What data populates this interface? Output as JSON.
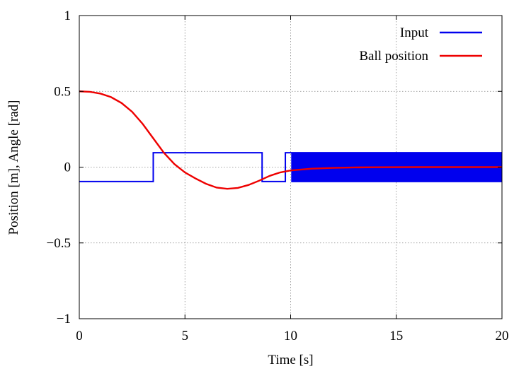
{
  "chart_data": {
    "type": "line",
    "title": "",
    "xlabel": "Time [s]",
    "ylabel": "Position [m], Angle [rad]",
    "xlim": [
      0,
      20
    ],
    "ylim": [
      -1,
      1
    ],
    "grid": true,
    "legend_position": "top-right",
    "x_ticks": [
      0,
      5,
      10,
      15,
      20
    ],
    "x_tick_labels": [
      "0",
      "5",
      "10",
      "15",
      "20"
    ],
    "y_ticks": [
      -1,
      -0.5,
      0,
      0.5,
      1
    ],
    "y_tick_labels": [
      "−1",
      "−0.5",
      "0",
      "0.5",
      "1"
    ],
    "series": [
      {
        "name": "Input",
        "color": "#0000ee",
        "points": [
          [
            0,
            -0.095
          ],
          [
            3.5,
            -0.095
          ],
          [
            3.5,
            0.095
          ],
          [
            8.65,
            0.095
          ],
          [
            8.65,
            -0.095
          ],
          [
            9.75,
            -0.095
          ],
          [
            9.75,
            0.095
          ],
          [
            10.0,
            0.095
          ]
        ],
        "chattering": {
          "from": 10.0,
          "to": 20.0,
          "amplitude": 0.095,
          "period": 0.12
        }
      },
      {
        "name": "Ball position",
        "color": "#ee0000",
        "points": [
          [
            0,
            0.5
          ],
          [
            0.5,
            0.497
          ],
          [
            1,
            0.485
          ],
          [
            1.5,
            0.462
          ],
          [
            2,
            0.423
          ],
          [
            2.5,
            0.365
          ],
          [
            3,
            0.285
          ],
          [
            3.5,
            0.19
          ],
          [
            4,
            0.095
          ],
          [
            4.5,
            0.02
          ],
          [
            5,
            -0.035
          ],
          [
            5.5,
            -0.075
          ],
          [
            6,
            -0.11
          ],
          [
            6.5,
            -0.135
          ],
          [
            7,
            -0.143
          ],
          [
            7.5,
            -0.137
          ],
          [
            8,
            -0.118
          ],
          [
            8.5,
            -0.09
          ],
          [
            9,
            -0.058
          ],
          [
            9.5,
            -0.035
          ],
          [
            10,
            -0.022
          ],
          [
            11,
            -0.01
          ],
          [
            12,
            -0.005
          ],
          [
            13,
            -0.002
          ],
          [
            14,
            -0.001
          ],
          [
            16,
            0
          ],
          [
            18,
            0
          ],
          [
            20,
            0
          ]
        ]
      }
    ]
  }
}
